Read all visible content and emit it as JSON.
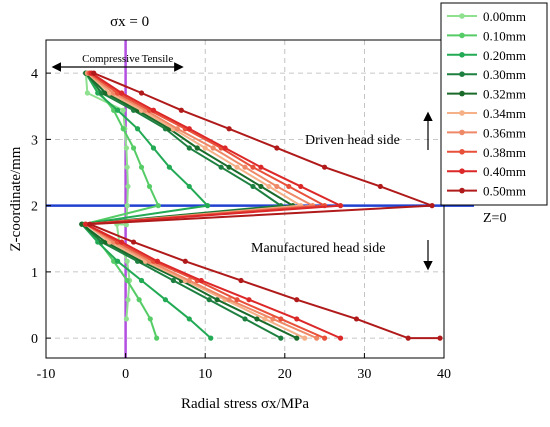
{
  "chart_data": {
    "type": "line",
    "title": "",
    "xlabel": "Radial stress σx/MPa",
    "ylabel": "Z-coordinate/mm",
    "xlim": [
      -10,
      40
    ],
    "ylim": [
      -0.3,
      4.5
    ],
    "xticks": [
      -10,
      0,
      10,
      20,
      30,
      40
    ],
    "yticks": [
      0,
      1,
      2,
      3,
      4
    ],
    "grid": "dashed",
    "legend_placement": "top-right outside",
    "annotations": {
      "sigma_label": "σx = 0",
      "compressive": "Compressive",
      "tensile": "Tensile",
      "driven_side": "Driven head side",
      "manufactured_side": "Manufactured head side",
      "z0": "Z=0"
    },
    "x_zero_line_color": "#b24fe0",
    "z_line_color": "#2040d0",
    "series": [
      {
        "name": "0.00mm",
        "color": "#8fe08f",
        "x": [
          -5,
          -4.8,
          -0.3,
          -0.1,
          0.1,
          0.2,
          0.3,
          0.2,
          0.1,
          -1.1,
          -0.8,
          0.2,
          0.5,
          0.3,
          0.1
        ],
        "y": [
          4,
          3.7,
          3.44,
          3.16,
          2.87,
          2.58,
          2.29,
          2.0,
          1.71,
          1.72,
          1.45,
          1.16,
          0.87,
          0.58,
          0.29
        ]
      },
      {
        "name": "0.10mm",
        "color": "#55cc66",
        "x": [
          -5,
          -3.2,
          -1.5,
          -0.3,
          1.0,
          2.0,
          3.0,
          4.1,
          -5.2,
          -3.3,
          -1.5,
          0.2,
          1.7,
          3.1,
          3.9
        ],
        "y": [
          4,
          3.7,
          3.44,
          3.16,
          2.87,
          2.58,
          2.29,
          2.0,
          1.72,
          1.45,
          1.16,
          0.87,
          0.58,
          0.29,
          0
        ]
      },
      {
        "name": "0.20mm",
        "color": "#22aa55",
        "x": [
          -5,
          -3.5,
          -1.0,
          1.5,
          3.5,
          5.5,
          8.0,
          10.3,
          -5.5,
          -3.5,
          -1.0,
          2.0,
          5.0,
          8.0,
          10.7
        ],
        "y": [
          4,
          3.7,
          3.44,
          3.16,
          2.87,
          2.58,
          2.29,
          2.0,
          1.72,
          1.45,
          1.16,
          0.87,
          0.58,
          0.29,
          0
        ]
      },
      {
        "name": "0.30mm",
        "color": "#1e8040",
        "x": [
          -5,
          -3.0,
          1.0,
          5.0,
          8.0,
          12.0,
          16.0,
          19.5,
          -5.5,
          -3.0,
          1.5,
          6.0,
          10.5,
          15.0,
          19.5
        ],
        "y": [
          4,
          3.7,
          3.44,
          3.16,
          2.87,
          2.58,
          2.29,
          2.0,
          1.72,
          1.45,
          1.16,
          0.87,
          0.58,
          0.29,
          0
        ]
      },
      {
        "name": "0.32mm",
        "color": "#1a6a2a",
        "x": [
          -5,
          -2.5,
          1.5,
          5.5,
          9.0,
          13.0,
          17.0,
          21.0,
          -5.5,
          -2.5,
          2.0,
          7.0,
          11.5,
          16.5,
          21.5
        ],
        "y": [
          4,
          3.7,
          3.44,
          3.16,
          2.87,
          2.58,
          2.29,
          2.0,
          1.72,
          1.45,
          1.16,
          0.87,
          0.58,
          0.29,
          0
        ]
      },
      {
        "name": "0.34mm",
        "color": "#f5b088",
        "x": [
          -4.8,
          -2.0,
          2.0,
          6.0,
          10.0,
          14.0,
          18.0,
          22.0,
          -5.0,
          -2.0,
          2.5,
          7.5,
          12.5,
          17.5,
          22.5
        ],
        "y": [
          4,
          3.7,
          3.44,
          3.16,
          2.87,
          2.58,
          2.29,
          2.0,
          1.72,
          1.45,
          1.16,
          0.87,
          0.58,
          0.29,
          0
        ]
      },
      {
        "name": "0.36mm",
        "color": "#ee8866",
        "x": [
          -4.7,
          -1.5,
          2.5,
          6.5,
          11.0,
          15.0,
          19.0,
          23.5,
          -5.0,
          -1.5,
          3.0,
          8.0,
          13.0,
          18.5,
          24.0
        ],
        "y": [
          4,
          3.7,
          3.44,
          3.16,
          2.87,
          2.58,
          2.29,
          2.0,
          1.72,
          1.45,
          1.16,
          0.87,
          0.58,
          0.29,
          0
        ]
      },
      {
        "name": "0.38mm",
        "color": "#e8503a",
        "x": [
          -4.5,
          -1.0,
          3.0,
          7.5,
          12.0,
          16.0,
          20.5,
          25.0,
          -5.0,
          -1.0,
          3.5,
          9.0,
          14.0,
          19.5,
          25.0
        ],
        "y": [
          4,
          3.7,
          3.44,
          3.16,
          2.87,
          2.58,
          2.29,
          2.0,
          1.72,
          1.45,
          1.16,
          0.87,
          0.58,
          0.29,
          0
        ]
      },
      {
        "name": "0.40mm",
        "color": "#dc2828",
        "x": [
          -4.3,
          -0.5,
          3.5,
          8.0,
          12.5,
          17.0,
          22.0,
          27.0,
          -5.0,
          -0.5,
          4.0,
          9.5,
          15.5,
          21.5,
          27.0
        ],
        "y": [
          4,
          3.7,
          3.44,
          3.16,
          2.87,
          2.58,
          2.29,
          2.0,
          1.72,
          1.45,
          1.16,
          0.87,
          0.58,
          0.29,
          0
        ]
      },
      {
        "name": "0.50mm",
        "color": "#b01a1a",
        "x": [
          -4.0,
          2.0,
          7.0,
          13.0,
          19.0,
          25.0,
          32.0,
          38.5,
          -4.5,
          1.0,
          7.5,
          14.5,
          21.5,
          29.0,
          35.5,
          39.5
        ],
        "y": [
          4,
          3.7,
          3.44,
          3.16,
          2.87,
          2.58,
          2.29,
          2.0,
          1.72,
          1.45,
          1.16,
          0.87,
          0.58,
          0.29,
          0.0,
          0
        ]
      }
    ]
  }
}
